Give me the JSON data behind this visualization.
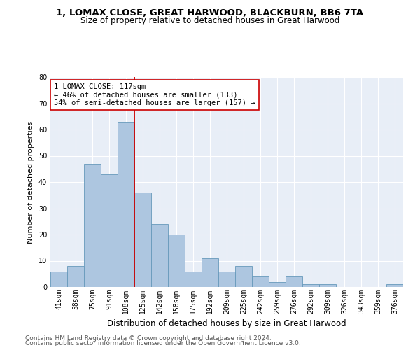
{
  "title1": "1, LOMAX CLOSE, GREAT HARWOOD, BLACKBURN, BB6 7TA",
  "title2": "Size of property relative to detached houses in Great Harwood",
  "xlabel": "Distribution of detached houses by size in Great Harwood",
  "ylabel": "Number of detached properties",
  "categories": [
    "41sqm",
    "58sqm",
    "75sqm",
    "91sqm",
    "108sqm",
    "125sqm",
    "142sqm",
    "158sqm",
    "175sqm",
    "192sqm",
    "209sqm",
    "225sqm",
    "242sqm",
    "259sqm",
    "276sqm",
    "292sqm",
    "309sqm",
    "326sqm",
    "343sqm",
    "359sqm",
    "376sqm"
  ],
  "values": [
    6,
    8,
    47,
    43,
    63,
    36,
    24,
    20,
    6,
    11,
    6,
    8,
    4,
    2,
    4,
    1,
    1,
    0,
    0,
    0,
    1
  ],
  "bar_color": "#adc6e0",
  "bar_edge_color": "#6699bb",
  "vline_x": 4.5,
  "vline_color": "#cc0000",
  "annotation_text": "1 LOMAX CLOSE: 117sqm\n← 46% of detached houses are smaller (133)\n54% of semi-detached houses are larger (157) →",
  "annotation_box_color": "#ffffff",
  "annotation_box_edge": "#cc0000",
  "ylim": [
    0,
    80
  ],
  "yticks": [
    0,
    10,
    20,
    30,
    40,
    50,
    60,
    70,
    80
  ],
  "background_color": "#e8eef7",
  "footer1": "Contains HM Land Registry data © Crown copyright and database right 2024.",
  "footer2": "Contains public sector information licensed under the Open Government Licence v3.0.",
  "title1_fontsize": 9.5,
  "title2_fontsize": 8.5,
  "xlabel_fontsize": 8.5,
  "ylabel_fontsize": 8,
  "tick_fontsize": 7,
  "annotation_fontsize": 7.5,
  "footer_fontsize": 6.5
}
